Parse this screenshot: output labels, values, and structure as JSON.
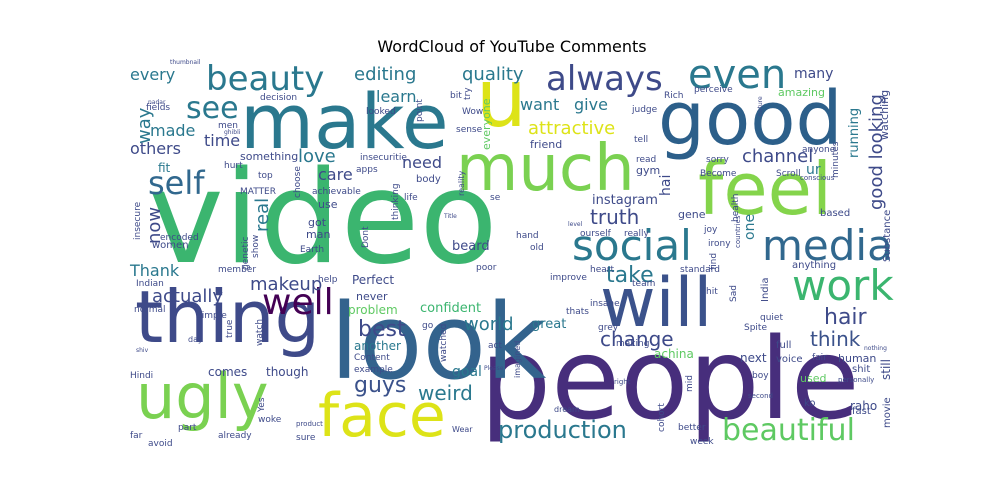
{
  "chart_data": {
    "type": "wordcloud",
    "title": "WordCloud of YouTube Comments",
    "colormap": "viridis",
    "background": "#ffffff",
    "words": [
      {
        "text": "video",
        "weight": 100,
        "color": "#3bb56f"
      },
      {
        "text": "people",
        "weight": 94,
        "color": "#472e7c"
      },
      {
        "text": "look",
        "weight": 88,
        "color": "#33638d"
      },
      {
        "text": "make",
        "weight": 74,
        "color": "#2a788e"
      },
      {
        "text": "good",
        "weight": 72,
        "color": "#2c5f8a"
      },
      {
        "text": "thing",
        "weight": 70,
        "color": "#3e4a89"
      },
      {
        "text": "much",
        "weight": 68,
        "color": "#7ad151"
      },
      {
        "text": "will",
        "weight": 66,
        "color": "#3b528b"
      },
      {
        "text": "feel",
        "weight": 64,
        "color": "#84d44b"
      },
      {
        "text": "u",
        "weight": 64,
        "color": "#dde318"
      },
      {
        "text": "ugly",
        "weight": 60,
        "color": "#7ad151"
      },
      {
        "text": "face",
        "weight": 58,
        "color": "#dde318"
      },
      {
        "text": "social",
        "weight": 42,
        "color": "#2a788e"
      },
      {
        "text": "media",
        "weight": 42,
        "color": "#31688e"
      },
      {
        "text": "even",
        "weight": 40,
        "color": "#2a788e"
      },
      {
        "text": "work",
        "weight": 38,
        "color": "#3bb56f"
      },
      {
        "text": "always",
        "weight": 38,
        "color": "#3e4a89"
      },
      {
        "text": "beauty",
        "weight": 36,
        "color": "#2a788e"
      },
      {
        "text": "well",
        "weight": 34,
        "color": "#440154"
      },
      {
        "text": "self",
        "weight": 32,
        "color": "#31688e"
      },
      {
        "text": "see",
        "weight": 30,
        "color": "#2a788e"
      },
      {
        "text": "beautiful",
        "weight": 30,
        "color": "#5ec962"
      },
      {
        "text": "production",
        "weight": 26,
        "color": "#2a788e"
      },
      {
        "text": "take",
        "weight": 22,
        "color": "#2a788e"
      },
      {
        "text": "hair",
        "weight": 22,
        "color": "#3e4a89"
      },
      {
        "text": "guys",
        "weight": 22,
        "color": "#3b528b"
      },
      {
        "text": "best",
        "weight": 22,
        "color": "#3e4a89"
      },
      {
        "text": "think",
        "weight": 20,
        "color": "#3b528b"
      },
      {
        "text": "change",
        "weight": 20,
        "color": "#3e4a89"
      },
      {
        "text": "weird",
        "weight": 20,
        "color": "#2a788e"
      },
      {
        "text": "truth",
        "weight": 20,
        "color": "#3e4a89"
      },
      {
        "text": "good looking",
        "weight": 18,
        "color": "#3e4a89"
      },
      {
        "text": "channel",
        "weight": 18,
        "color": "#3e4a89"
      },
      {
        "text": "attractive",
        "weight": 18,
        "color": "#dde318"
      },
      {
        "text": "makeup",
        "weight": 18,
        "color": "#3e4a89"
      },
      {
        "text": "actually",
        "weight": 18,
        "color": "#3e4a89"
      },
      {
        "text": "love",
        "weight": 18,
        "color": "#2a788e"
      },
      {
        "text": "way",
        "weight": 18,
        "color": "#2a788e"
      },
      {
        "text": "now",
        "weight": 18,
        "color": "#3e4a89"
      },
      {
        "text": "real",
        "weight": 18,
        "color": "#2a788e"
      },
      {
        "text": "world",
        "weight": 18,
        "color": "#2a788e"
      },
      {
        "text": "editing",
        "weight": 18,
        "color": "#2a788e"
      },
      {
        "text": "quality",
        "weight": 18,
        "color": "#2a788e"
      },
      {
        "text": "want",
        "weight": 16,
        "color": "#2a788e"
      },
      {
        "text": "give",
        "weight": 16,
        "color": "#2a788e"
      },
      {
        "text": "every",
        "weight": 16,
        "color": "#2a788e"
      },
      {
        "text": "made",
        "weight": 16,
        "color": "#2a788e"
      },
      {
        "text": "others",
        "weight": 16,
        "color": "#3e4a89"
      },
      {
        "text": "time",
        "weight": 16,
        "color": "#3e4a89"
      },
      {
        "text": "learn",
        "weight": 16,
        "color": "#2a788e"
      },
      {
        "text": "need",
        "weight": 16,
        "color": "#3e4a89"
      },
      {
        "text": "care",
        "weight": 16,
        "color": "#3e4a89"
      },
      {
        "text": "Thank",
        "weight": 16,
        "color": "#2a788e"
      },
      {
        "text": "many",
        "weight": 14,
        "color": "#3e4a89"
      },
      {
        "text": "goal",
        "weight": 14,
        "color": "#2a788e"
      },
      {
        "text": "hai",
        "weight": 14,
        "color": "#3e4a89"
      },
      {
        "text": "one",
        "weight": 14,
        "color": "#2a788e"
      },
      {
        "text": "ur",
        "weight": 14,
        "color": "#2a788e"
      },
      {
        "text": "running",
        "weight": 13,
        "color": "#2a788e"
      },
      {
        "text": "beard",
        "weight": 13,
        "color": "#3e4a89"
      },
      {
        "text": "instagram",
        "weight": 13,
        "color": "#3e4a89"
      },
      {
        "text": "confident",
        "weight": 13,
        "color": "#3bb56f"
      },
      {
        "text": "great",
        "weight": 13,
        "color": "#2a788e"
      },
      {
        "text": "problem",
        "weight": 12,
        "color": "#5ec962"
      },
      {
        "text": "another",
        "weight": 12,
        "color": "#2a788e"
      },
      {
        "text": "Perfect",
        "weight": 12,
        "color": "#3e4a89"
      },
      {
        "text": "raho",
        "weight": 12,
        "color": "#3e4a89"
      },
      {
        "text": "still",
        "weight": 12,
        "color": "#3e4a89"
      },
      {
        "text": "next",
        "weight": 12,
        "color": "#3e4a89"
      },
      {
        "text": "achina",
        "weight": 12,
        "color": "#5ec962"
      },
      {
        "text": "comes",
        "weight": 12,
        "color": "#3e4a89"
      },
      {
        "text": "though",
        "weight": 12,
        "color": "#3e4a89"
      },
      {
        "text": "fit",
        "weight": 12,
        "color": "#2a788e"
      },
      {
        "text": "something",
        "weight": 11,
        "color": "#3e4a89"
      },
      {
        "text": "amazing",
        "weight": 11,
        "color": "#5ec962"
      },
      {
        "text": "watching",
        "weight": 11,
        "color": "#3e4a89"
      },
      {
        "text": "used",
        "weight": 11,
        "color": "#5ec962"
      },
      {
        "text": "human",
        "weight": 11,
        "color": "#3e4a89"
      },
      {
        "text": "gene",
        "weight": 11,
        "color": "#3e4a89"
      },
      {
        "text": "gym",
        "weight": 11,
        "color": "#3e4a89"
      },
      {
        "text": "friend",
        "weight": 11,
        "color": "#3e4a89"
      },
      {
        "text": "everyone",
        "weight": 11,
        "color": "#5ec962"
      },
      {
        "text": "never",
        "weight": 11,
        "color": "#3e4a89"
      },
      {
        "text": "use",
        "weight": 11,
        "color": "#3e4a89"
      },
      {
        "text": "got",
        "weight": 11,
        "color": "#3e4a89"
      },
      {
        "text": "man",
        "weight": 11,
        "color": "#3e4a89"
      },
      {
        "text": "women",
        "weight": 10,
        "color": "#3e4a89"
      },
      {
        "text": "body",
        "weight": 10,
        "color": "#3e4a89"
      },
      {
        "text": "anything",
        "weight": 10,
        "color": "#3e4a89"
      },
      {
        "text": "voice",
        "weight": 10,
        "color": "#3e4a89"
      },
      {
        "text": "shit",
        "weight": 10,
        "color": "#3e4a89"
      },
      {
        "text": "fast",
        "weight": 10,
        "color": "#3e4a89"
      },
      {
        "text": "movie",
        "weight": 10,
        "color": "#3e4a89"
      },
      {
        "text": "Substance",
        "weight": 10,
        "color": "#3e4a89"
      },
      {
        "text": "based",
        "weight": 10,
        "color": "#3e4a89"
      },
      {
        "text": "India",
        "weight": 10,
        "color": "#3e4a89"
      },
      {
        "text": "full",
        "weight": 10,
        "color": "#3e4a89"
      },
      {
        "text": "ko",
        "weight": 10,
        "color": "#3e4a89"
      },
      {
        "text": "better",
        "weight": 9,
        "color": "#3e4a89"
      },
      {
        "text": "week",
        "weight": 9,
        "color": "#3e4a89"
      },
      {
        "text": "fair",
        "weight": 9,
        "color": "#3e4a89"
      },
      {
        "text": "watch",
        "weight": 9,
        "color": "#3e4a89"
      },
      {
        "text": "true",
        "weight": 9,
        "color": "#3e4a89"
      },
      {
        "text": "Simple",
        "weight": 9,
        "color": "#3e4a89"
      },
      {
        "text": "normal",
        "weight": 9,
        "color": "#3e4a89"
      },
      {
        "text": "Hindi",
        "weight": 9,
        "color": "#3e4a89"
      },
      {
        "text": "far",
        "weight": 9,
        "color": "#3e4a89"
      },
      {
        "text": "avoid",
        "weight": 9,
        "color": "#3e4a89"
      },
      {
        "text": "part",
        "weight": 9,
        "color": "#3e4a89"
      },
      {
        "text": "already",
        "weight": 9,
        "color": "#3e4a89"
      },
      {
        "text": "sure",
        "weight": 9,
        "color": "#3e4a89"
      },
      {
        "text": "woke",
        "weight": 9,
        "color": "#3e4a89"
      },
      {
        "text": "Yes",
        "weight": 9,
        "color": "#3e4a89"
      },
      {
        "text": "example",
        "weight": 9,
        "color": "#3e4a89"
      },
      {
        "text": "Content",
        "weight": 9,
        "color": "#3e4a89"
      },
      {
        "text": "watched",
        "weight": 9,
        "color": "#3e4a89"
      },
      {
        "text": "act",
        "weight": 9,
        "color": "#3e4a89"
      },
      {
        "text": "insane",
        "weight": 9,
        "color": "#3e4a89"
      },
      {
        "text": "thats",
        "weight": 9,
        "color": "#3e4a89"
      },
      {
        "text": "grey",
        "weight": 9,
        "color": "#3e4a89"
      },
      {
        "text": "making",
        "weight": 9,
        "color": "#3e4a89"
      },
      {
        "text": "cohort",
        "weight": 9,
        "color": "#3e4a89"
      },
      {
        "text": "mid",
        "weight": 9,
        "color": "#3e4a89"
      },
      {
        "text": "boy",
        "weight": 9,
        "color": "#3e4a89"
      },
      {
        "text": "Spite",
        "weight": 9,
        "color": "#3e4a89"
      },
      {
        "text": "quiet",
        "weight": 9,
        "color": "#3e4a89"
      },
      {
        "text": "Sad",
        "weight": 9,
        "color": "#3e4a89"
      },
      {
        "text": "hit",
        "weight": 9,
        "color": "#3e4a89"
      },
      {
        "text": "team",
        "weight": 9,
        "color": "#3e4a89"
      },
      {
        "text": "standard",
        "weight": 9,
        "color": "#3e4a89"
      },
      {
        "text": "improve",
        "weight": 9,
        "color": "#3e4a89"
      },
      {
        "text": "heart",
        "weight": 9,
        "color": "#3e4a89"
      },
      {
        "text": "poor",
        "weight": 9,
        "color": "#3e4a89"
      },
      {
        "text": "hand",
        "weight": 9,
        "color": "#3e4a89"
      },
      {
        "text": "old",
        "weight": 9,
        "color": "#3e4a89"
      },
      {
        "text": "ourself",
        "weight": 9,
        "color": "#3e4a89"
      },
      {
        "text": "really",
        "weight": 9,
        "color": "#3e4a89"
      },
      {
        "text": "joy",
        "weight": 9,
        "color": "#3e4a89"
      },
      {
        "text": "irony",
        "weight": 9,
        "color": "#3e4a89"
      },
      {
        "text": "health",
        "weight": 9,
        "color": "#3e4a89"
      },
      {
        "text": "find",
        "weight": 9,
        "color": "#3e4a89"
      },
      {
        "text": "minutes",
        "weight": 9,
        "color": "#3e4a89"
      },
      {
        "text": "Scroll",
        "weight": 9,
        "color": "#3e4a89"
      },
      {
        "text": "sorry",
        "weight": 9,
        "color": "#3e4a89"
      },
      {
        "text": "read",
        "weight": 9,
        "color": "#3e4a89"
      },
      {
        "text": "tell",
        "weight": 9,
        "color": "#3e4a89"
      },
      {
        "text": "sense",
        "weight": 9,
        "color": "#3e4a89"
      },
      {
        "text": "Wow",
        "weight": 9,
        "color": "#3e4a89"
      },
      {
        "text": "judge",
        "weight": 9,
        "color": "#3e4a89"
      },
      {
        "text": "Rich",
        "weight": 9,
        "color": "#3e4a89"
      },
      {
        "text": "perceive",
        "weight": 9,
        "color": "#3e4a89"
      },
      {
        "text": "Become",
        "weight": 9,
        "color": "#3e4a89"
      },
      {
        "text": "conscious",
        "weight": 8,
        "color": "#3e4a89"
      },
      {
        "text": "anyone",
        "weight": 9,
        "color": "#3e4a89"
      },
      {
        "text": "decision",
        "weight": 9,
        "color": "#3e4a89"
      },
      {
        "text": "looked",
        "weight": 9,
        "color": "#3e4a89"
      },
      {
        "text": "point",
        "weight": 9,
        "color": "#3e4a89"
      },
      {
        "text": "fields",
        "weight": 9,
        "color": "#3e4a89"
      },
      {
        "text": "men",
        "weight": 9,
        "color": "#3e4a89"
      },
      {
        "text": "hurt",
        "weight": 9,
        "color": "#3e4a89"
      },
      {
        "text": "top",
        "weight": 9,
        "color": "#3e4a89"
      },
      {
        "text": "MATTER",
        "weight": 9,
        "color": "#3e4a89"
      },
      {
        "text": "choose",
        "weight": 9,
        "color": "#3e4a89"
      },
      {
        "text": "achievable",
        "weight": 9,
        "color": "#3e4a89"
      },
      {
        "text": "insecuritie",
        "weight": 9,
        "color": "#3e4a89"
      },
      {
        "text": "apps",
        "weight": 9,
        "color": "#3e4a89"
      },
      {
        "text": "life",
        "weight": 9,
        "color": "#3e4a89"
      },
      {
        "text": "se",
        "weight": 9,
        "color": "#3e4a89"
      },
      {
        "text": "thinking",
        "weight": 9,
        "color": "#3e4a89"
      },
      {
        "text": "Dont",
        "weight": 9,
        "color": "#3e4a89"
      },
      {
        "text": "Earth",
        "weight": 9,
        "color": "#3e4a89"
      },
      {
        "text": "show",
        "weight": 9,
        "color": "#3e4a89"
      },
      {
        "text": "genetic",
        "weight": 9,
        "color": "#3e4a89"
      },
      {
        "text": "member",
        "weight": 9,
        "color": "#3e4a89"
      },
      {
        "text": "encoded",
        "weight": 9,
        "color": "#3e4a89"
      },
      {
        "text": "insecure",
        "weight": 9,
        "color": "#3e4a89"
      },
      {
        "text": "Indian",
        "weight": 9,
        "color": "#3e4a89"
      },
      {
        "text": "help",
        "weight": 9,
        "color": "#3e4a89"
      },
      {
        "text": "go",
        "weight": 9,
        "color": "#3e4a89"
      },
      {
        "text": "try",
        "weight": 9,
        "color": "#3e4a89"
      },
      {
        "text": "bit",
        "weight": 9,
        "color": "#3e4a89"
      },
      {
        "text": "reality",
        "weight": 8,
        "color": "#3e4a89"
      },
      {
        "text": "imagined",
        "weight": 8,
        "color": "#3e4a89"
      },
      {
        "text": "dream",
        "weight": 8,
        "color": "#3e4a89"
      },
      {
        "text": "Wear",
        "weight": 8,
        "color": "#3e4a89"
      },
      {
        "text": "day",
        "weight": 8,
        "color": "#3e4a89"
      },
      {
        "text": "product",
        "weight": 7,
        "color": "#3e4a89"
      },
      {
        "text": "second",
        "weight": 7,
        "color": "#3e4a89"
      },
      {
        "text": "right",
        "weight": 7,
        "color": "#3e4a89"
      },
      {
        "text": "personally",
        "weight": 7,
        "color": "#3e4a89"
      },
      {
        "text": "nothing",
        "weight": 6,
        "color": "#3e4a89"
      },
      {
        "text": "Please",
        "weight": 6,
        "color": "#3e4a89"
      },
      {
        "text": "level",
        "weight": 6,
        "color": "#3e4a89"
      },
      {
        "text": "Title",
        "weight": 6,
        "color": "#3e4a89"
      },
      {
        "text": "nature",
        "weight": 6,
        "color": "#3e4a89"
      },
      {
        "text": "ghibli",
        "weight": 6,
        "color": "#3e4a89"
      },
      {
        "text": "nadar",
        "weight": 6,
        "color": "#3e4a89"
      },
      {
        "text": "thumbnail",
        "weight": 6,
        "color": "#3e4a89"
      },
      {
        "text": "shiv",
        "weight": 6,
        "color": "#3e4a89"
      },
      {
        "text": "countries",
        "weight": 7,
        "color": "#3e4a89"
      }
    ]
  }
}
